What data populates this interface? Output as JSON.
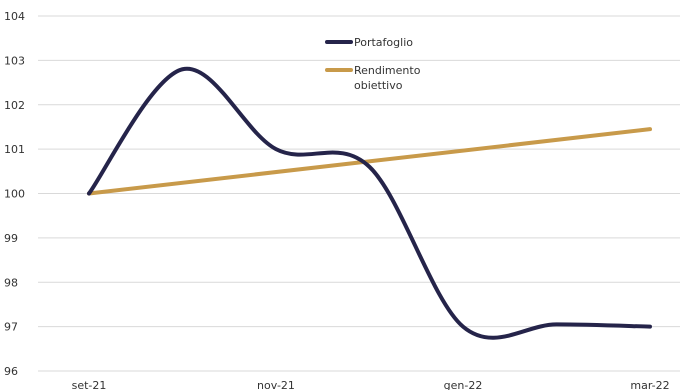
{
  "chart_data": {
    "type": "line",
    "title": "",
    "xlabel": "",
    "ylabel": "",
    "x_ticks": [
      {
        "label": "set-21",
        "x": 0
      },
      {
        "label": "nov-21",
        "x": 2
      },
      {
        "label": "gen-22",
        "x": 4
      },
      {
        "label": "mar-22",
        "x": 6
      }
    ],
    "xlim": [
      0,
      6
    ],
    "ylim": [
      96,
      104
    ],
    "y_ticks": [
      96,
      97,
      98,
      99,
      100,
      101,
      102,
      103,
      104
    ],
    "grid": "horizontal",
    "legend_position": "top-center",
    "series": [
      {
        "name": "Portafoglio",
        "color": "#25244a",
        "x": [
          0,
          1,
          2,
          3,
          4,
          5,
          6
        ],
        "values": [
          100,
          102.8,
          101.0,
          100.6,
          97.0,
          97.05,
          97.0
        ]
      },
      {
        "name": "Rendimento obiettivo",
        "color": "#c89a4a",
        "x": [
          0,
          6
        ],
        "values": [
          100,
          101.45
        ]
      }
    ]
  }
}
